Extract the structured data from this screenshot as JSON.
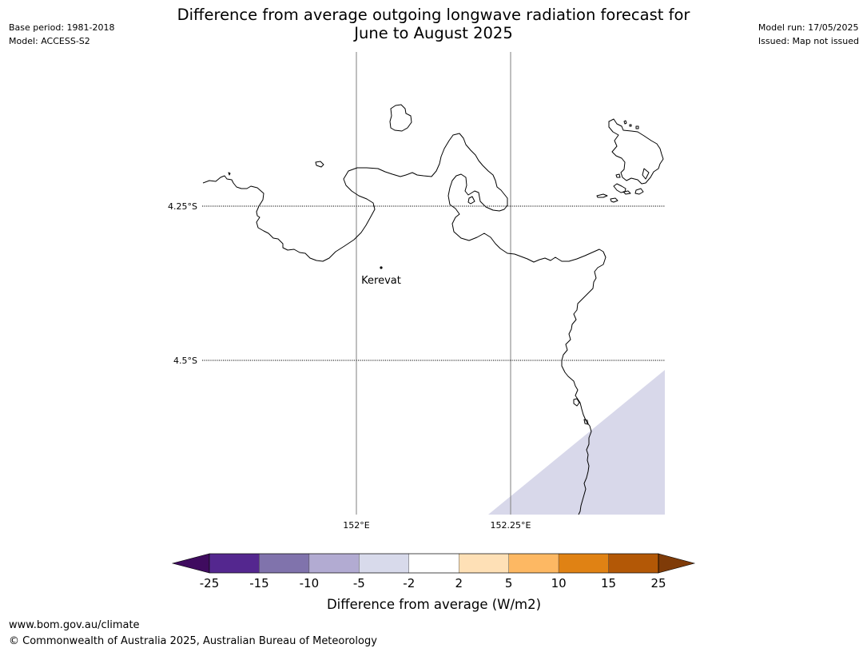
{
  "header": {
    "title_line1": "Difference from average outgoing longwave radiation forecast for",
    "title_line2": "June to August 2025",
    "base_period": "Base period: 1981-2018",
    "model": "Model: ACCESS-S2",
    "model_run": "Model run: 17/05/2025",
    "issued": "Issued: Map not issued"
  },
  "map": {
    "graticule": {
      "lat_labels": [
        "4.25°S",
        "4.5°S"
      ],
      "lon_labels": [
        "152°E",
        "152.25°E"
      ]
    },
    "places": [
      {
        "name": "Kerevat"
      }
    ],
    "shaded_category": "-5 to -2",
    "colors": {
      "coastline": "#000000",
      "graticule_lat": "#000000",
      "graticule_lon": "#7f7f7f",
      "shading": "#d8d8ea"
    }
  },
  "colorbar": {
    "label": "Difference from average (W/m2)",
    "ticks": [
      "-25",
      "-15",
      "-10",
      "-5",
      "-2",
      "2",
      "5",
      "10",
      "15",
      "25"
    ],
    "under_color": "#3f0b5f",
    "over_color": "#7f3b08",
    "bins": [
      {
        "from": "-25",
        "to": "-15",
        "color": "#54278f"
      },
      {
        "from": "-15",
        "to": "-10",
        "color": "#8073ac"
      },
      {
        "from": "-10",
        "to": "-5",
        "color": "#b2abd2"
      },
      {
        "from": "-5",
        "to": "-2",
        "color": "#d8daeb"
      },
      {
        "from": "-2",
        "to": "2",
        "color": "#ffffff"
      },
      {
        "from": "2",
        "to": "5",
        "color": "#fee0b6"
      },
      {
        "from": "5",
        "to": "10",
        "color": "#fdb863"
      },
      {
        "from": "10",
        "to": "15",
        "color": "#e08214"
      },
      {
        "from": "15",
        "to": "25",
        "color": "#b35806"
      }
    ]
  },
  "footer": {
    "url": "www.bom.gov.au/climate",
    "copyright": "© Commonwealth of Australia 2025, Australian Bureau of Meteorology"
  }
}
